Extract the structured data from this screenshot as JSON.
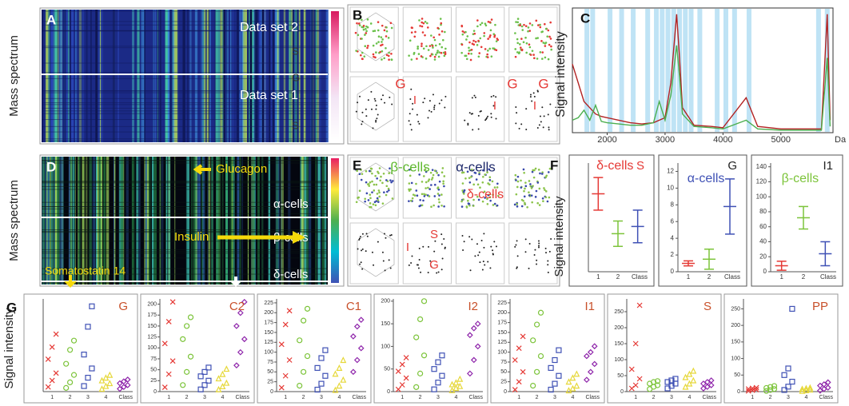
{
  "chart_data": [
    {
      "type": "heatmap",
      "label": "A",
      "y_label": "Mass spectrum",
      "annotations": [
        "Data set 2",
        "Data set 1",
        "S",
        "G",
        "S"
      ]
    },
    {
      "type": "heatmap",
      "label": "D",
      "y_label": "Mass spectrum",
      "annotations": [
        "Glucagon",
        "α-cells",
        "β-cells",
        "Insulin",
        "Somatostatin 14",
        "δ-cells"
      ]
    },
    {
      "type": "scatter-matrix",
      "label": "B",
      "annotations": [
        "G",
        "I",
        "G",
        "I",
        "G",
        "I"
      ]
    },
    {
      "type": "scatter-matrix",
      "label": "E",
      "annotations": [
        "β-cells",
        "α-cells",
        "δ-cells",
        "S",
        "I",
        "G"
      ]
    },
    {
      "type": "line",
      "label": "C",
      "y_label": "Signal intensity",
      "x_label": "Da",
      "x": [
        1400,
        1500,
        1600,
        1700,
        1800,
        1900,
        2000,
        2200,
        2400,
        2600,
        2800,
        2900,
        3000,
        3100,
        3200,
        3250,
        3300,
        3500,
        3800,
        4000,
        4400,
        4600,
        5000,
        5400,
        5700,
        5800,
        5850
      ],
      "series": [
        {
          "color": "#b22222",
          "values": [
            55,
            40,
            25,
            20,
            15,
            13,
            12,
            10,
            8,
            7,
            8,
            10,
            12,
            40,
            95,
            60,
            20,
            6,
            5,
            4,
            28,
            5,
            3,
            3,
            3,
            95,
            10
          ]
        },
        {
          "color": "#4caf50",
          "values": [
            10,
            12,
            18,
            10,
            22,
            9,
            8,
            7,
            6,
            6,
            8,
            25,
            10,
            30,
            70,
            45,
            15,
            5,
            4,
            3,
            10,
            3,
            2,
            2,
            2,
            60,
            5
          ]
        }
      ],
      "highlight_x": [
        1650,
        1750,
        2050,
        2250,
        2450,
        2700,
        2850,
        2950,
        3050,
        3150,
        3250,
        3350,
        3450,
        3600,
        3900,
        4050,
        4200,
        4450,
        5650,
        5800
      ],
      "highlight_color": "#bfe3f5",
      "xlim": [
        1400,
        5900
      ],
      "xticks": [
        2000,
        3000,
        4000,
        5000
      ],
      "ylim": [
        0,
        100
      ]
    },
    {
      "type": "errorbar",
      "label": "F",
      "y_label": "Signal intensity",
      "title": "S",
      "group": "δ-cells",
      "categories": [
        "1",
        "2",
        null
      ],
      "x_label": "Class",
      "values": [
        2.15,
        1.05,
        1.25
      ],
      "errors": [
        0.45,
        0.35,
        0.45
      ],
      "colors": [
        "#e53935",
        "#7cc43a",
        "#3f51b5"
      ],
      "ylim": [
        0,
        3
      ]
    },
    {
      "type": "errorbar",
      "title": "G",
      "group": "α-cells",
      "categories": [
        "1",
        "2",
        null
      ],
      "x_label": "Class",
      "values": [
        1.0,
        1.5,
        7.8
      ],
      "errors": [
        0.3,
        1.2,
        3.3
      ],
      "colors": [
        "#e53935",
        "#7cc43a",
        "#3f51b5"
      ],
      "ylim": [
        0,
        13
      ],
      "yticks": [
        0,
        2,
        4,
        6,
        8,
        10,
        12
      ]
    },
    {
      "type": "errorbar",
      "title": "I1",
      "group": "β-cells",
      "categories": [
        "1",
        "2",
        null
      ],
      "x_label": "Class",
      "values": [
        8,
        72,
        24
      ],
      "errors": [
        6,
        15,
        16
      ],
      "colors": [
        "#e53935",
        "#7cc43a",
        "#3f51b5"
      ],
      "ylim": [
        0,
        145
      ],
      "yticks": [
        0,
        20,
        40,
        60,
        80,
        100,
        120,
        140
      ]
    },
    {
      "type": "strip",
      "label": "G",
      "y_label": "Signal intensity",
      "title": "G",
      "categories": [
        "1",
        "2",
        "3",
        "4",
        null
      ],
      "x_label": "Class",
      "colors": [
        "#e53935",
        "#7cc43a",
        "#3f51b5",
        "#e6d83a",
        "#8e24aa"
      ],
      "markers": [
        "x",
        "circle",
        "square",
        "triangle",
        "diamond"
      ],
      "ylim": [
        0,
        100
      ],
      "values": [
        [
          5,
          12,
          20,
          35,
          48,
          62
        ],
        [
          4,
          10,
          18,
          30,
          45,
          55
        ],
        [
          6,
          15,
          25,
          40,
          70,
          92
        ],
        [
          3,
          6,
          9,
          12,
          15,
          18
        ],
        [
          3,
          5,
          7,
          9,
          11,
          13
        ]
      ]
    },
    {
      "type": "strip",
      "title": "C2",
      "categories": [
        "1",
        "2",
        "3",
        "4",
        null
      ],
      "x_label": "Class",
      "colors": [
        "#e53935",
        "#7cc43a",
        "#3f51b5",
        "#e6d83a",
        "#8e24aa"
      ],
      "markers": [
        "x",
        "circle",
        "square",
        "triangle",
        "diamond"
      ],
      "ylim": [
        0,
        212
      ],
      "yticks": [
        0,
        25,
        50,
        75,
        100,
        125,
        150,
        175,
        200
      ],
      "values": [
        [
          10,
          40,
          70,
          110,
          160,
          205
        ],
        [
          15,
          45,
          80,
          120,
          150,
          170
        ],
        [
          5,
          15,
          25,
          35,
          45,
          55
        ],
        [
          5,
          12,
          20,
          30,
          40,
          52
        ],
        [
          60,
          90,
          120,
          150,
          180,
          205
        ]
      ]
    },
    {
      "type": "strip",
      "title": "C1",
      "categories": [
        "1",
        "2",
        "3",
        "4",
        null
      ],
      "x_label": "Class",
      "colors": [
        "#e53935",
        "#7cc43a",
        "#3f51b5",
        "#e6d83a",
        "#8e24aa"
      ],
      "markers": [
        "x",
        "circle",
        "square",
        "triangle",
        "diamond"
      ],
      "ylim": [
        0,
        235
      ],
      "yticks": [
        0,
        25,
        50,
        75,
        100,
        125,
        150,
        175,
        200,
        225
      ],
      "values": [
        [
          10,
          40,
          80,
          120,
          170,
          205
        ],
        [
          15,
          50,
          90,
          130,
          180,
          210
        ],
        [
          5,
          20,
          40,
          60,
          85,
          105
        ],
        [
          4,
          15,
          30,
          45,
          60,
          80
        ],
        [
          50,
          80,
          110,
          140,
          165,
          182
        ]
      ]
    },
    {
      "type": "strip",
      "title": "I2",
      "categories": [
        "1",
        "2",
        "3",
        "4",
        null
      ],
      "x_label": "Class",
      "colors": [
        "#e53935",
        "#7cc43a",
        "#3f51b5",
        "#e6d83a",
        "#8e24aa"
      ],
      "markers": [
        "x",
        "circle",
        "square",
        "triangle",
        "diamond"
      ],
      "ylim": [
        0,
        205
      ],
      "yticks": [
        0,
        50,
        100,
        150,
        200
      ],
      "values": [
        [
          5,
          15,
          30,
          45,
          60,
          75
        ],
        [
          10,
          40,
          80,
          120,
          160,
          200
        ],
        [
          5,
          20,
          35,
          50,
          65,
          80
        ],
        [
          3,
          8,
          12,
          16,
          20,
          28
        ],
        [
          40,
          70,
          100,
          125,
          140,
          150
        ]
      ]
    },
    {
      "type": "strip",
      "title": "I1",
      "categories": [
        "1",
        "2",
        "3",
        "4",
        null
      ],
      "x_label": "Class",
      "colors": [
        "#e53935",
        "#7cc43a",
        "#3f51b5",
        "#e6d83a",
        "#8e24aa"
      ],
      "markers": [
        "x",
        "circle",
        "square",
        "triangle",
        "diamond"
      ],
      "ylim": [
        0,
        235
      ],
      "yticks": [
        0,
        25,
        50,
        75,
        100,
        125,
        150,
        175,
        200,
        225
      ],
      "values": [
        [
          5,
          25,
          50,
          80,
          110,
          140
        ],
        [
          15,
          50,
          90,
          130,
          170,
          200
        ],
        [
          5,
          20,
          40,
          60,
          80,
          105
        ],
        [
          3,
          8,
          15,
          25,
          35,
          45
        ],
        [
          30,
          50,
          70,
          90,
          100,
          115
        ]
      ]
    },
    {
      "type": "strip",
      "title": "S",
      "categories": [
        "1",
        "2",
        "3",
        "4",
        null
      ],
      "x_label": "Class",
      "colors": [
        "#e53935",
        "#7cc43a",
        "#3f51b5",
        "#e6d83a",
        "#8e24aa"
      ],
      "markers": [
        "x",
        "circle",
        "square",
        "triangle",
        "diamond"
      ],
      "ylim": [
        0,
        290
      ],
      "yticks": [
        0,
        50,
        100,
        150,
        200,
        250
      ],
      "values": [
        [
          10,
          20,
          40,
          70,
          150,
          270
        ],
        [
          8,
          15,
          20,
          25,
          30,
          33
        ],
        [
          10,
          18,
          25,
          30,
          35,
          40
        ],
        [
          15,
          25,
          35,
          45,
          55,
          65
        ],
        [
          10,
          15,
          20,
          25,
          30,
          35
        ]
      ]
    },
    {
      "type": "strip",
      "title": "PP",
      "categories": [
        "1",
        "2",
        "3",
        "4",
        null
      ],
      "x_label": "Class",
      "colors": [
        "#e53935",
        "#7cc43a",
        "#3f51b5",
        "#e6d83a",
        "#8e24aa"
      ],
      "markers": [
        "x",
        "circle",
        "square",
        "triangle",
        "diamond"
      ],
      "ylim": [
        0,
        280
      ],
      "yticks": [
        0,
        50,
        100,
        150,
        200,
        250
      ],
      "values": [
        [
          2,
          4,
          6,
          8,
          10,
          12
        ],
        [
          2,
          5,
          8,
          11,
          14,
          17
        ],
        [
          5,
          15,
          30,
          50,
          70,
          250
        ],
        [
          2,
          4,
          6,
          8,
          10,
          12
        ],
        [
          3,
          8,
          12,
          18,
          22,
          28
        ]
      ]
    }
  ]
}
